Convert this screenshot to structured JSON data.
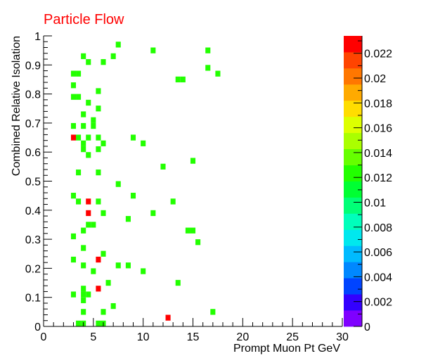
{
  "chart_data": {
    "type": "heatmap",
    "title": "Particle Flow",
    "xlabel": "Prompt Muon Pt GeV",
    "ylabel": "Combined Relative Isolation",
    "xlim": [
      0,
      30
    ],
    "ylim": [
      0,
      1
    ],
    "x_ticks": [
      "0",
      "5",
      "10",
      "15",
      "20",
      "25",
      "30"
    ],
    "y_ticks": [
      "0",
      "0.1",
      "0.2",
      "0.3",
      "0.4",
      "0.5",
      "0.6",
      "0.7",
      "0.8",
      "0.9",
      "1"
    ],
    "grid": false,
    "bin_size": {
      "x": 0.5,
      "y": 0.02
    },
    "colorbar": {
      "min": 0,
      "max": 0.0234,
      "ticks": [
        "0",
        "0.002",
        "0.004",
        "0.006",
        "0.008",
        "0.01",
        "0.012",
        "0.014",
        "0.016",
        "0.018",
        "0.02",
        "0.022"
      ],
      "colors": [
        "#7f00ff",
        "#3300ff",
        "#0044ff",
        "#0088ff",
        "#00bbff",
        "#00e8ee",
        "#00ffbb",
        "#00ff77",
        "#00ff33",
        "#22ff00",
        "#66ff00",
        "#aaff00",
        "#ddff00",
        "#ffdd00",
        "#ffaa00",
        "#ff7700",
        "#ff4400",
        "#ff0000"
      ]
    },
    "cells": [
      {
        "x": 7.5,
        "y": 0.97,
        "v": 0.0117
      },
      {
        "x": 11.0,
        "y": 0.95,
        "v": 0.0117
      },
      {
        "x": 16.5,
        "y": 0.95,
        "v": 0.0117
      },
      {
        "x": 4.0,
        "y": 0.93,
        "v": 0.0117
      },
      {
        "x": 7.0,
        "y": 0.93,
        "v": 0.0117
      },
      {
        "x": 4.5,
        "y": 0.91,
        "v": 0.0117
      },
      {
        "x": 6.0,
        "y": 0.91,
        "v": 0.0117
      },
      {
        "x": 16.5,
        "y": 0.89,
        "v": 0.0117
      },
      {
        "x": 3.0,
        "y": 0.87,
        "v": 0.0117
      },
      {
        "x": 3.5,
        "y": 0.87,
        "v": 0.0117
      },
      {
        "x": 17.5,
        "y": 0.87,
        "v": 0.0117
      },
      {
        "x": 13.5,
        "y": 0.85,
        "v": 0.0117
      },
      {
        "x": 14.0,
        "y": 0.85,
        "v": 0.0117
      },
      {
        "x": 3.0,
        "y": 0.83,
        "v": 0.0117
      },
      {
        "x": 5.5,
        "y": 0.81,
        "v": 0.0117
      },
      {
        "x": 3.0,
        "y": 0.79,
        "v": 0.0117
      },
      {
        "x": 3.5,
        "y": 0.79,
        "v": 0.0117
      },
      {
        "x": 4.5,
        "y": 0.77,
        "v": 0.0117
      },
      {
        "x": 5.5,
        "y": 0.75,
        "v": 0.0117
      },
      {
        "x": 4.0,
        "y": 0.73,
        "v": 0.0117
      },
      {
        "x": 5.0,
        "y": 0.71,
        "v": 0.0117
      },
      {
        "x": 3.0,
        "y": 0.69,
        "v": 0.0117
      },
      {
        "x": 4.0,
        "y": 0.69,
        "v": 0.0117
      },
      {
        "x": 5.0,
        "y": 0.69,
        "v": 0.0117
      },
      {
        "x": 3.0,
        "y": 0.65,
        "v": 0.0234
      },
      {
        "x": 3.5,
        "y": 0.65,
        "v": 0.0117
      },
      {
        "x": 4.5,
        "y": 0.65,
        "v": 0.0117
      },
      {
        "x": 5.5,
        "y": 0.65,
        "v": 0.0117
      },
      {
        "x": 9.0,
        "y": 0.65,
        "v": 0.0117
      },
      {
        "x": 4.0,
        "y": 0.63,
        "v": 0.0117
      },
      {
        "x": 6.0,
        "y": 0.63,
        "v": 0.0117
      },
      {
        "x": 10.0,
        "y": 0.63,
        "v": 0.0117
      },
      {
        "x": 4.0,
        "y": 0.61,
        "v": 0.0117
      },
      {
        "x": 5.5,
        "y": 0.61,
        "v": 0.0117
      },
      {
        "x": 4.5,
        "y": 0.59,
        "v": 0.0117
      },
      {
        "x": 15.0,
        "y": 0.57,
        "v": 0.0117
      },
      {
        "x": 12.0,
        "y": 0.55,
        "v": 0.0117
      },
      {
        "x": 3.5,
        "y": 0.53,
        "v": 0.0117
      },
      {
        "x": 5.5,
        "y": 0.53,
        "v": 0.0117
      },
      {
        "x": 7.5,
        "y": 0.49,
        "v": 0.0117
      },
      {
        "x": 3.0,
        "y": 0.45,
        "v": 0.0117
      },
      {
        "x": 9.0,
        "y": 0.45,
        "v": 0.0117
      },
      {
        "x": 3.5,
        "y": 0.43,
        "v": 0.0117
      },
      {
        "x": 4.5,
        "y": 0.43,
        "v": 0.0234
      },
      {
        "x": 5.5,
        "y": 0.43,
        "v": 0.0117
      },
      {
        "x": 13.0,
        "y": 0.43,
        "v": 0.0117
      },
      {
        "x": 4.5,
        "y": 0.39,
        "v": 0.0234
      },
      {
        "x": 6.0,
        "y": 0.39,
        "v": 0.0117
      },
      {
        "x": 11.0,
        "y": 0.39,
        "v": 0.0117
      },
      {
        "x": 8.5,
        "y": 0.37,
        "v": 0.0117
      },
      {
        "x": 4.5,
        "y": 0.35,
        "v": 0.0117
      },
      {
        "x": 5.0,
        "y": 0.35,
        "v": 0.0117
      },
      {
        "x": 4.0,
        "y": 0.33,
        "v": 0.0117
      },
      {
        "x": 14.5,
        "y": 0.33,
        "v": 0.0117
      },
      {
        "x": 15.0,
        "y": 0.33,
        "v": 0.0117
      },
      {
        "x": 3.0,
        "y": 0.31,
        "v": 0.0117
      },
      {
        "x": 15.5,
        "y": 0.29,
        "v": 0.0117
      },
      {
        "x": 4.0,
        "y": 0.27,
        "v": 0.0117
      },
      {
        "x": 6.0,
        "y": 0.25,
        "v": 0.0117
      },
      {
        "x": 3.0,
        "y": 0.23,
        "v": 0.0117
      },
      {
        "x": 5.5,
        "y": 0.23,
        "v": 0.0234
      },
      {
        "x": 4.0,
        "y": 0.21,
        "v": 0.0117
      },
      {
        "x": 7.5,
        "y": 0.21,
        "v": 0.0117
      },
      {
        "x": 8.5,
        "y": 0.21,
        "v": 0.0117
      },
      {
        "x": 5.0,
        "y": 0.19,
        "v": 0.0117
      },
      {
        "x": 10.0,
        "y": 0.19,
        "v": 0.0117
      },
      {
        "x": 6.5,
        "y": 0.15,
        "v": 0.0117
      },
      {
        "x": 13.5,
        "y": 0.15,
        "v": 0.0117
      },
      {
        "x": 4.0,
        "y": 0.13,
        "v": 0.0117
      },
      {
        "x": 5.5,
        "y": 0.13,
        "v": 0.0234
      },
      {
        "x": 3.0,
        "y": 0.11,
        "v": 0.0117
      },
      {
        "x": 4.0,
        "y": 0.11,
        "v": 0.0117
      },
      {
        "x": 4.5,
        "y": 0.11,
        "v": 0.0117
      },
      {
        "x": 4.0,
        "y": 0.09,
        "v": 0.0117
      },
      {
        "x": 7.0,
        "y": 0.07,
        "v": 0.0117
      },
      {
        "x": 4.0,
        "y": 0.05,
        "v": 0.0117
      },
      {
        "x": 6.0,
        "y": 0.05,
        "v": 0.0117
      },
      {
        "x": 17.0,
        "y": 0.05,
        "v": 0.0117
      },
      {
        "x": 12.5,
        "y": 0.03,
        "v": 0.0234
      },
      {
        "x": 3.5,
        "y": 0.01,
        "v": 0.0117
      },
      {
        "x": 4.0,
        "y": 0.01,
        "v": 0.0117
      },
      {
        "x": 5.5,
        "y": 0.01,
        "v": 0.0117
      },
      {
        "x": 6.0,
        "y": 0.01,
        "v": 0.0117
      }
    ]
  }
}
